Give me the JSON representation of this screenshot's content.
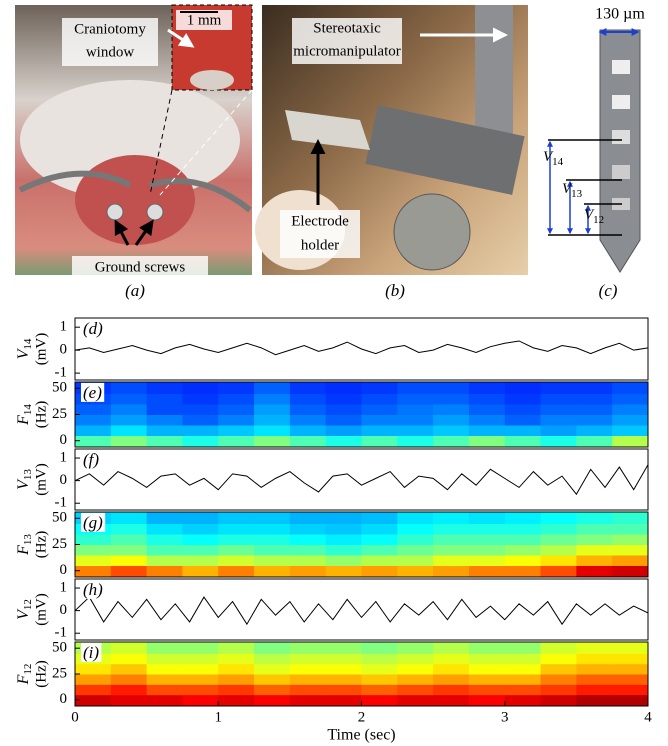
{
  "figure": {
    "panels": [
      {
        "caption": "(a)",
        "texts": [
          "Craniotomy",
          "window",
          "1 mm",
          "Ground screws"
        ]
      },
      {
        "caption": "(b)",
        "texts": [
          "Stereotaxic",
          "micromanipulator",
          "Electrode",
          "holder"
        ]
      },
      {
        "caption": "(c)",
        "scale": "130 µm",
        "channels": [
          {
            "symbol": "V",
            "subscript": "14"
          },
          {
            "symbol": "V",
            "subscript": "13"
          },
          {
            "symbol": "V",
            "subscript": "12"
          }
        ]
      }
    ]
  },
  "chart_data": [
    {
      "type": "line",
      "panel_label": "(d)",
      "ylabel": {
        "symbol": "V",
        "subscript": "14",
        "unit": "(mV)"
      },
      "color": "#000000",
      "x": [
        0,
        0.1,
        0.2,
        0.3,
        0.4,
        0.5,
        0.6,
        0.7,
        0.8,
        0.9,
        1,
        1.1,
        1.2,
        1.3,
        1.4,
        1.5,
        1.6,
        1.7,
        1.8,
        1.9,
        2,
        2.1,
        2.2,
        2.3,
        2.4,
        2.5,
        2.6,
        2.7,
        2.8,
        2.9,
        3,
        3.1,
        3.2,
        3.3,
        3.4,
        3.5,
        3.6,
        3.7,
        3.8,
        3.9,
        4
      ],
      "values": [
        0,
        0.1,
        -0.1,
        0.05,
        0.2,
        0,
        -0.15,
        0.1,
        0.25,
        0.05,
        -0.1,
        0.1,
        0.3,
        0.1,
        -0.2,
        0,
        0.2,
        -0.05,
        0.1,
        0.35,
        0.05,
        -0.15,
        0.1,
        0.2,
        -0.1,
        0,
        0.25,
        0.1,
        -0.1,
        0.15,
        0.3,
        0.4,
        0.1,
        -0.05,
        0.2,
        0.1,
        -0.15,
        0.1,
        0.3,
        0,
        0.1
      ],
      "xlim": [
        0,
        4
      ],
      "ylim": [
        -1.3,
        1.4
      ],
      "yticks": [
        1,
        0,
        -1
      ]
    },
    {
      "type": "heatmap",
      "panel_label": "(e)",
      "ylabel": {
        "symbol": "F",
        "subscript": "14",
        "unit": "(Hz)"
      },
      "colormap": "jet",
      "clim": [
        0,
        1
      ],
      "x_edges": [
        0,
        0.25,
        0.5,
        0.75,
        1,
        1.25,
        1.5,
        1.75,
        2,
        2.25,
        2.5,
        2.75,
        3,
        3.25,
        3.5,
        3.75,
        4
      ],
      "y_edges": [
        -6,
        5,
        15,
        25,
        35,
        45,
        56
      ],
      "z": [
        [
          0.45,
          0.5,
          0.45,
          0.4,
          0.45,
          0.5,
          0.45,
          0.4,
          0.45,
          0.4,
          0.45,
          0.5,
          0.45,
          0.4,
          0.45,
          0.55
        ],
        [
          0.3,
          0.35,
          0.3,
          0.3,
          0.32,
          0.35,
          0.3,
          0.28,
          0.3,
          0.3,
          0.32,
          0.3,
          0.3,
          0.28,
          0.3,
          0.32
        ],
        [
          0.25,
          0.28,
          0.25,
          0.22,
          0.25,
          0.3,
          0.25,
          0.22,
          0.25,
          0.25,
          0.28,
          0.25,
          0.22,
          0.25,
          0.25,
          0.28
        ],
        [
          0.22,
          0.25,
          0.2,
          0.2,
          0.22,
          0.28,
          0.22,
          0.2,
          0.22,
          0.24,
          0.25,
          0.22,
          0.2,
          0.22,
          0.22,
          0.25
        ],
        [
          0.2,
          0.22,
          0.2,
          0.18,
          0.2,
          0.25,
          0.2,
          0.18,
          0.2,
          0.22,
          0.22,
          0.2,
          0.18,
          0.2,
          0.2,
          0.22
        ],
        [
          0.18,
          0.2,
          0.18,
          0.17,
          0.18,
          0.22,
          0.18,
          0.17,
          0.18,
          0.2,
          0.2,
          0.18,
          0.17,
          0.18,
          0.18,
          0.2
        ]
      ],
      "xlim": [
        0,
        4
      ],
      "ylim": [
        -6,
        56
      ],
      "yticks": [
        50,
        25,
        0
      ]
    },
    {
      "type": "line",
      "panel_label": "(f)",
      "ylabel": {
        "symbol": "V",
        "subscript": "13",
        "unit": "(mV)"
      },
      "color": "#000000",
      "x": [
        0,
        0.1,
        0.2,
        0.3,
        0.4,
        0.5,
        0.6,
        0.7,
        0.8,
        0.9,
        1,
        1.1,
        1.2,
        1.3,
        1.4,
        1.5,
        1.6,
        1.7,
        1.8,
        1.9,
        2,
        2.1,
        2.2,
        2.3,
        2.4,
        2.5,
        2.6,
        2.7,
        2.8,
        2.9,
        3,
        3.1,
        3.2,
        3.3,
        3.4,
        3.5,
        3.6,
        3.7,
        3.8,
        3.9,
        4
      ],
      "values": [
        0,
        0.3,
        -0.2,
        0.4,
        0.1,
        -0.3,
        0.2,
        0.3,
        -0.2,
        0.1,
        -0.4,
        0.3,
        0.2,
        -0.3,
        0.1,
        0.4,
        -0.1,
        -0.5,
        0.2,
        0.3,
        -0.2,
        0.1,
        0.4,
        -0.3,
        0.2,
        0.1,
        -0.4,
        0.3,
        -0.2,
        0.5,
        0.1,
        -0.3,
        0.4,
        -0.2,
        0.2,
        -0.6,
        0.5,
        -0.3,
        0.6,
        -0.4,
        0.7
      ],
      "xlim": [
        0,
        4
      ],
      "ylim": [
        -1.3,
        1.4
      ],
      "yticks": [
        1,
        0,
        -1
      ]
    },
    {
      "type": "heatmap",
      "panel_label": "(g)",
      "ylabel": {
        "symbol": "F",
        "subscript": "13",
        "unit": "(Hz)"
      },
      "colormap": "jet",
      "clim": [
        0,
        1
      ],
      "x_edges": [
        0,
        0.25,
        0.5,
        0.75,
        1,
        1.25,
        1.5,
        1.75,
        2,
        2.25,
        2.5,
        2.75,
        3,
        3.25,
        3.5,
        3.75,
        4
      ],
      "y_edges": [
        -6,
        5,
        15,
        25,
        35,
        45,
        56
      ],
      "z": [
        [
          0.75,
          0.8,
          0.75,
          0.7,
          0.75,
          0.7,
          0.72,
          0.7,
          0.72,
          0.7,
          0.72,
          0.75,
          0.75,
          0.8,
          0.9,
          0.92
        ],
        [
          0.6,
          0.62,
          0.55,
          0.55,
          0.58,
          0.55,
          0.55,
          0.52,
          0.55,
          0.55,
          0.6,
          0.6,
          0.62,
          0.65,
          0.7,
          0.72
        ],
        [
          0.5,
          0.5,
          0.45,
          0.45,
          0.48,
          0.45,
          0.45,
          0.42,
          0.45,
          0.48,
          0.5,
          0.5,
          0.52,
          0.55,
          0.6,
          0.6
        ],
        [
          0.42,
          0.45,
          0.4,
          0.38,
          0.4,
          0.4,
          0.38,
          0.36,
          0.38,
          0.42,
          0.45,
          0.45,
          0.45,
          0.48,
          0.5,
          0.52
        ],
        [
          0.38,
          0.4,
          0.35,
          0.33,
          0.35,
          0.35,
          0.33,
          0.32,
          0.34,
          0.38,
          0.4,
          0.4,
          0.4,
          0.42,
          0.45,
          0.45
        ],
        [
          0.33,
          0.35,
          0.3,
          0.3,
          0.32,
          0.32,
          0.3,
          0.3,
          0.31,
          0.35,
          0.36,
          0.35,
          0.36,
          0.38,
          0.4,
          0.42
        ]
      ],
      "xlim": [
        0,
        4
      ],
      "ylim": [
        -6,
        56
      ],
      "yticks": [
        50,
        25,
        0
      ]
    },
    {
      "type": "line",
      "panel_label": "(h)",
      "ylabel": {
        "symbol": "V",
        "subscript": "12",
        "unit": "(mV)"
      },
      "color": "#000000",
      "x": [
        0,
        0.1,
        0.2,
        0.3,
        0.4,
        0.5,
        0.6,
        0.7,
        0.8,
        0.9,
        1,
        1.1,
        1.2,
        1.3,
        1.4,
        1.5,
        1.6,
        1.7,
        1.8,
        1.9,
        2,
        2.1,
        2.2,
        2.3,
        2.4,
        2.5,
        2.6,
        2.7,
        2.8,
        2.9,
        3,
        3.1,
        3.2,
        3.3,
        3.4,
        3.5,
        3.6,
        3.7,
        3.8,
        3.9,
        4
      ],
      "values": [
        0,
        0.6,
        -0.5,
        0.4,
        -0.3,
        0.5,
        -0.4,
        0.3,
        -0.5,
        0.6,
        -0.3,
        0.4,
        -0.6,
        0.5,
        -0.2,
        0.4,
        -0.5,
        0.3,
        -0.4,
        0.5,
        -0.3,
        0.4,
        -0.5,
        0.3,
        -0.2,
        0.4,
        -0.4,
        0.5,
        -0.3,
        0.2,
        -0.4,
        0.3,
        -0.2,
        0.4,
        -0.6,
        0.3,
        -0.2,
        0.3,
        -0.2,
        0.2,
        -0.1
      ],
      "xlim": [
        0,
        4
      ],
      "ylim": [
        -1.3,
        1.4
      ],
      "yticks": [
        1,
        0,
        -1
      ]
    },
    {
      "type": "heatmap",
      "panel_label": "(i)",
      "ylabel": {
        "symbol": "F",
        "subscript": "12",
        "unit": "(Hz)"
      },
      "colormap": "jet",
      "clim": [
        0,
        1
      ],
      "x_edges": [
        0,
        0.25,
        0.5,
        0.75,
        1,
        1.25,
        1.5,
        1.75,
        2,
        2.25,
        2.5,
        2.75,
        3,
        3.25,
        3.5,
        3.75,
        4
      ],
      "y_edges": [
        -6,
        5,
        15,
        25,
        35,
        45,
        56
      ],
      "z": [
        [
          0.92,
          0.9,
          0.9,
          0.88,
          0.9,
          0.88,
          0.9,
          0.9,
          0.88,
          0.9,
          0.9,
          0.88,
          0.9,
          0.92,
          0.95,
          0.95
        ],
        [
          0.82,
          0.85,
          0.8,
          0.8,
          0.82,
          0.78,
          0.8,
          0.8,
          0.78,
          0.8,
          0.82,
          0.8,
          0.8,
          0.82,
          0.85,
          0.85
        ],
        [
          0.72,
          0.75,
          0.7,
          0.7,
          0.72,
          0.68,
          0.7,
          0.7,
          0.68,
          0.7,
          0.72,
          0.7,
          0.7,
          0.75,
          0.78,
          0.78
        ],
        [
          0.65,
          0.68,
          0.62,
          0.62,
          0.65,
          0.6,
          0.62,
          0.62,
          0.6,
          0.62,
          0.65,
          0.62,
          0.62,
          0.68,
          0.7,
          0.7
        ],
        [
          0.6,
          0.62,
          0.58,
          0.58,
          0.6,
          0.56,
          0.58,
          0.58,
          0.56,
          0.58,
          0.6,
          0.58,
          0.58,
          0.62,
          0.65,
          0.65
        ],
        [
          0.55,
          0.58,
          0.52,
          0.52,
          0.55,
          0.5,
          0.52,
          0.52,
          0.5,
          0.52,
          0.55,
          0.52,
          0.52,
          0.58,
          0.6,
          0.6
        ]
      ],
      "xlim": [
        0,
        4
      ],
      "ylim": [
        -6,
        56
      ],
      "yticks": [
        50,
        25,
        0
      ],
      "xticks": [
        0,
        1,
        2,
        3,
        4
      ],
      "xlabel": "Time (sec)"
    }
  ]
}
